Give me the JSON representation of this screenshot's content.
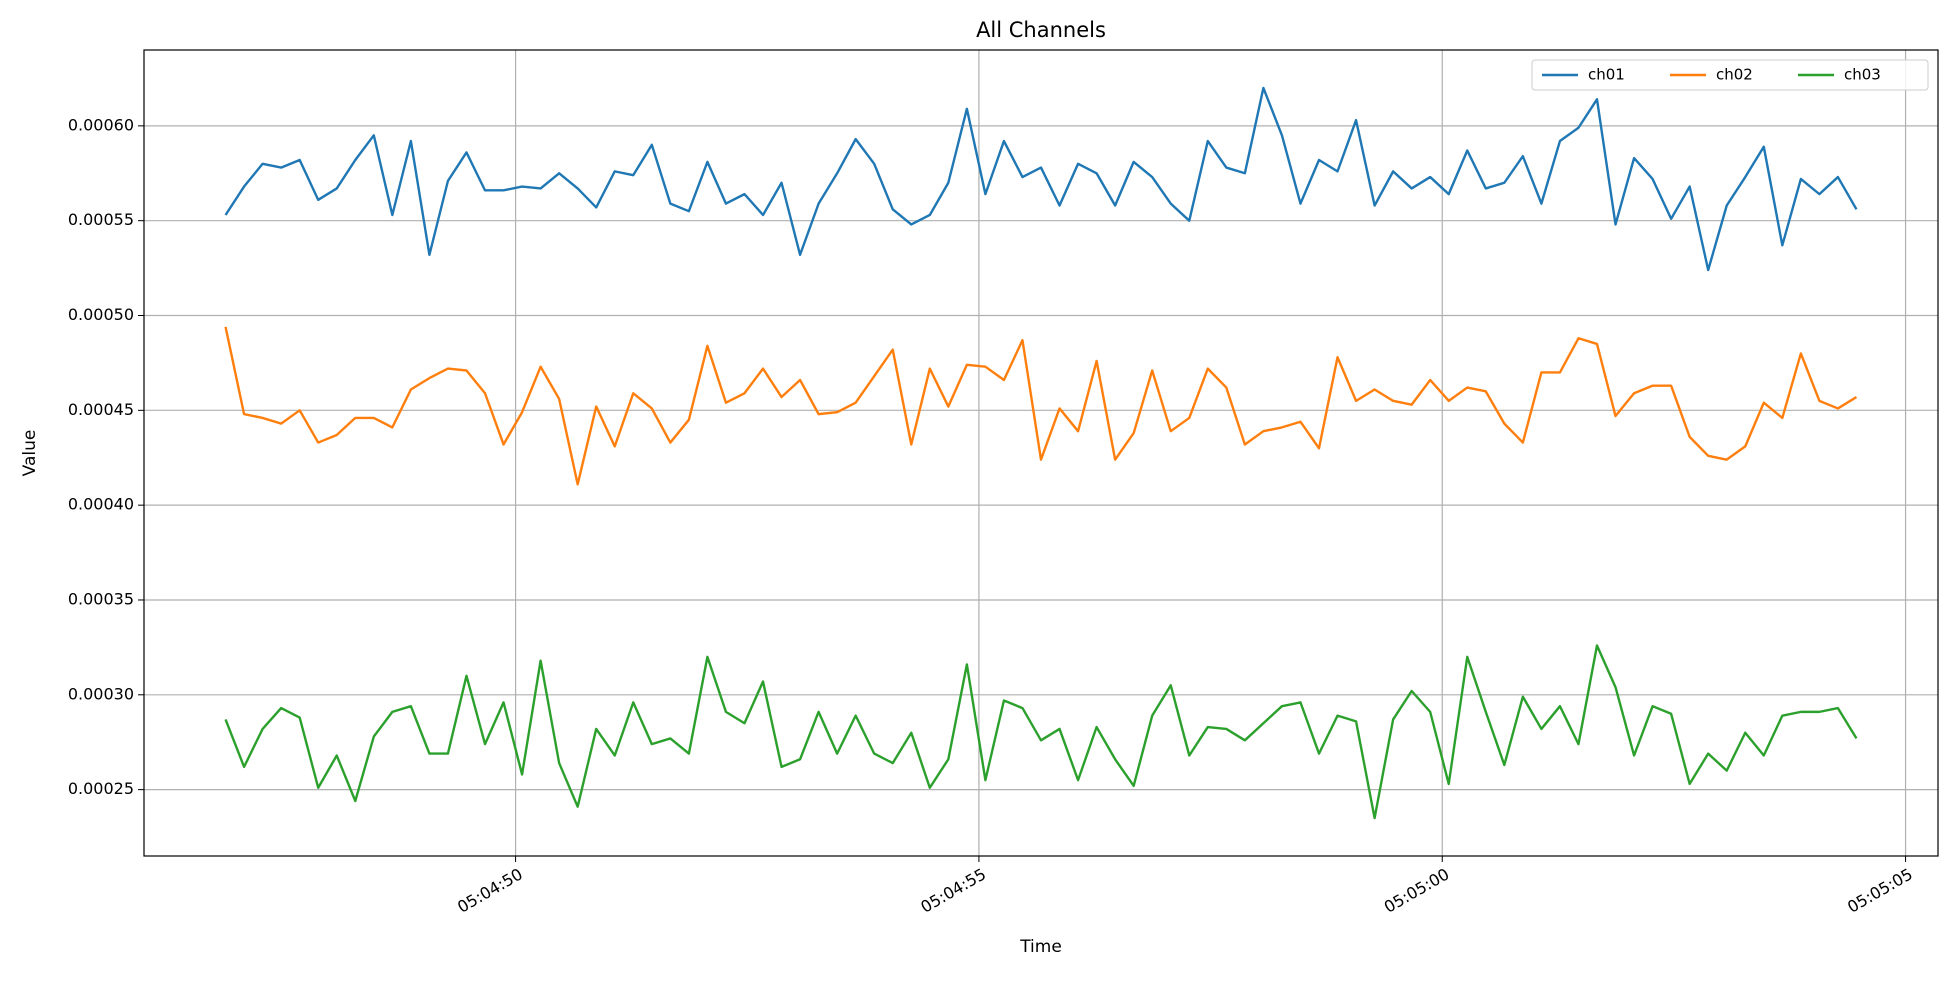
{
  "chart_data": {
    "type": "line",
    "title": "All Channels",
    "xlabel": "Time",
    "ylabel": "Value",
    "x": [
      "05:04:46.87",
      "05:04:47.07",
      "05:04:47.27",
      "05:04:47.47",
      "05:04:47.67",
      "05:04:47.87",
      "05:04:48.07",
      "05:04:48.27",
      "05:04:48.47",
      "05:04:48.67",
      "05:04:48.87",
      "05:04:49.07",
      "05:04:49.27",
      "05:04:49.47",
      "05:04:49.67",
      "05:04:49.87",
      "05:04:50.07",
      "05:04:50.27",
      "05:04:50.47",
      "05:04:50.67",
      "05:04:50.87",
      "05:04:51.07",
      "05:04:51.27",
      "05:04:51.47",
      "05:04:51.67",
      "05:04:51.87",
      "05:04:52.07",
      "05:04:52.27",
      "05:04:52.47",
      "05:04:52.67",
      "05:04:52.87",
      "05:04:53.07",
      "05:04:53.27",
      "05:04:53.47",
      "05:04:53.67",
      "05:04:53.87",
      "05:04:54.07",
      "05:04:54.27",
      "05:04:54.47",
      "05:04:54.67",
      "05:04:54.87",
      "05:04:55.07",
      "05:04:55.27",
      "05:04:55.47",
      "05:04:55.67",
      "05:04:55.87",
      "05:04:56.07",
      "05:04:56.27",
      "05:04:56.47",
      "05:04:56.67",
      "05:04:56.87",
      "05:04:57.07",
      "05:04:57.27",
      "05:04:57.47",
      "05:04:57.67",
      "05:04:57.87",
      "05:04:58.07",
      "05:04:58.27",
      "05:04:58.47",
      "05:04:58.67",
      "05:04:58.87",
      "05:04:59.07",
      "05:04:59.27",
      "05:04:59.47",
      "05:04:59.67",
      "05:04:59.87",
      "05:05:00.07",
      "05:05:00.27",
      "05:05:00.47",
      "05:05:00.67",
      "05:05:00.87",
      "05:05:01.07",
      "05:05:01.27",
      "05:05:01.47",
      "05:05:01.67",
      "05:05:01.87",
      "05:05:02.07",
      "05:05:02.27",
      "05:05:02.47",
      "05:05:02.67",
      "05:05:02.87",
      "05:05:03.07",
      "05:05:03.27",
      "05:05:03.47",
      "05:05:03.67",
      "05:05:03.87",
      "05:05:04.07",
      "05:05:04.27",
      "05:05:04.47"
    ],
    "series": [
      {
        "name": "ch01",
        "color": "#1f77b4",
        "values": [
          0.000553,
          0.000568,
          0.00058,
          0.000578,
          0.000582,
          0.000561,
          0.000567,
          0.000582,
          0.000595,
          0.000553,
          0.000592,
          0.000532,
          0.000571,
          0.000586,
          0.000566,
          0.000566,
          0.000568,
          0.000567,
          0.000575,
          0.000567,
          0.000557,
          0.000576,
          0.000574,
          0.00059,
          0.000559,
          0.000555,
          0.000581,
          0.000559,
          0.000564,
          0.000553,
          0.00057,
          0.000532,
          0.000559,
          0.000575,
          0.000593,
          0.00058,
          0.000556,
          0.000548,
          0.000553,
          0.00057,
          0.000609,
          0.000564,
          0.000592,
          0.000573,
          0.000578,
          0.000558,
          0.00058,
          0.000575,
          0.000558,
          0.000581,
          0.000573,
          0.000559,
          0.00055,
          0.000592,
          0.000578,
          0.000575,
          0.00062,
          0.000595,
          0.000559,
          0.000582,
          0.000576,
          0.000603,
          0.000558,
          0.000576,
          0.000567,
          0.000573,
          0.000564,
          0.000587,
          0.000567,
          0.00057,
          0.000584,
          0.000559,
          0.000592,
          0.000599,
          0.000614,
          0.000548,
          0.000583,
          0.000572,
          0.000551,
          0.000568,
          0.000524,
          0.000558,
          0.000573,
          0.000589,
          0.000537,
          0.000572,
          0.000564,
          0.000573,
          0.000556
        ]
      },
      {
        "name": "ch02",
        "color": "#ff7f0e",
        "values": [
          0.000494,
          0.000448,
          0.000446,
          0.000443,
          0.00045,
          0.000433,
          0.000437,
          0.000446,
          0.000446,
          0.000441,
          0.000461,
          0.000467,
          0.000472,
          0.000471,
          0.000459,
          0.000432,
          0.000449,
          0.000473,
          0.000456,
          0.000411,
          0.000452,
          0.000431,
          0.000459,
          0.000451,
          0.000433,
          0.000445,
          0.000484,
          0.000454,
          0.000459,
          0.000472,
          0.000457,
          0.000466,
          0.000448,
          0.000449,
          0.000454,
          0.000468,
          0.000482,
          0.000432,
          0.000472,
          0.000452,
          0.000474,
          0.000473,
          0.000466,
          0.000487,
          0.000424,
          0.000451,
          0.000439,
          0.000476,
          0.000424,
          0.000438,
          0.000471,
          0.000439,
          0.000446,
          0.000472,
          0.000462,
          0.000432,
          0.000439,
          0.000441,
          0.000444,
          0.00043,
          0.000478,
          0.000455,
          0.000461,
          0.000455,
          0.000453,
          0.000466,
          0.000455,
          0.000462,
          0.00046,
          0.000443,
          0.000433,
          0.00047,
          0.00047,
          0.000488,
          0.000485,
          0.000447,
          0.000459,
          0.000463,
          0.000463,
          0.000436,
          0.000426,
          0.000424,
          0.000431,
          0.000454,
          0.000446,
          0.00048,
          0.000455,
          0.000451,
          0.000457
        ]
      },
      {
        "name": "ch03",
        "color": "#2ca02c",
        "values": [
          0.000287,
          0.000262,
          0.000282,
          0.000293,
          0.000288,
          0.000251,
          0.000268,
          0.000244,
          0.000278,
          0.000291,
          0.000294,
          0.000269,
          0.000269,
          0.00031,
          0.000274,
          0.000296,
          0.000258,
          0.000318,
          0.000264,
          0.000241,
          0.000282,
          0.000268,
          0.000296,
          0.000274,
          0.000277,
          0.000269,
          0.00032,
          0.000291,
          0.000285,
          0.000307,
          0.000262,
          0.000266,
          0.000291,
          0.000269,
          0.000289,
          0.000269,
          0.000264,
          0.00028,
          0.000251,
          0.000266,
          0.000316,
          0.000255,
          0.000297,
          0.000293,
          0.000276,
          0.000282,
          0.000255,
          0.000283,
          0.000266,
          0.000252,
          0.000289,
          0.000305,
          0.000268,
          0.000283,
          0.000282,
          0.000276,
          0.000285,
          0.000294,
          0.000296,
          0.000269,
          0.000289,
          0.000286,
          0.000235,
          0.000287,
          0.000302,
          0.000291,
          0.000253,
          0.00032,
          0.000291,
          0.000263,
          0.000299,
          0.000282,
          0.000294,
          0.000274,
          0.000326,
          0.000304,
          0.000268,
          0.000294,
          0.00029,
          0.000253,
          0.000269,
          0.00026,
          0.00028,
          0.000268,
          0.000289,
          0.000291,
          0.000291,
          0.000293,
          0.000277
        ]
      }
    ],
    "xlim": [
      "05:04:45.99",
      "05:05:05.35"
    ],
    "xticks": [
      "05:04:50",
      "05:04:55",
      "05:05:00",
      "05:05:05"
    ],
    "ylim": [
      0.000215,
      0.00064
    ],
    "yticks": [
      {
        "value": 0.00025,
        "label": "0.00025"
      },
      {
        "value": 0.0003,
        "label": "0.00030"
      },
      {
        "value": 0.00035,
        "label": "0.00035"
      },
      {
        "value": 0.0004,
        "label": "0.00040"
      },
      {
        "value": 0.00045,
        "label": "0.00045"
      },
      {
        "value": 0.0005,
        "label": "0.00050"
      },
      {
        "value": 0.00055,
        "label": "0.00055"
      },
      {
        "value": 0.0006,
        "label": "0.00060"
      }
    ],
    "grid": true,
    "legend": "upper right"
  }
}
